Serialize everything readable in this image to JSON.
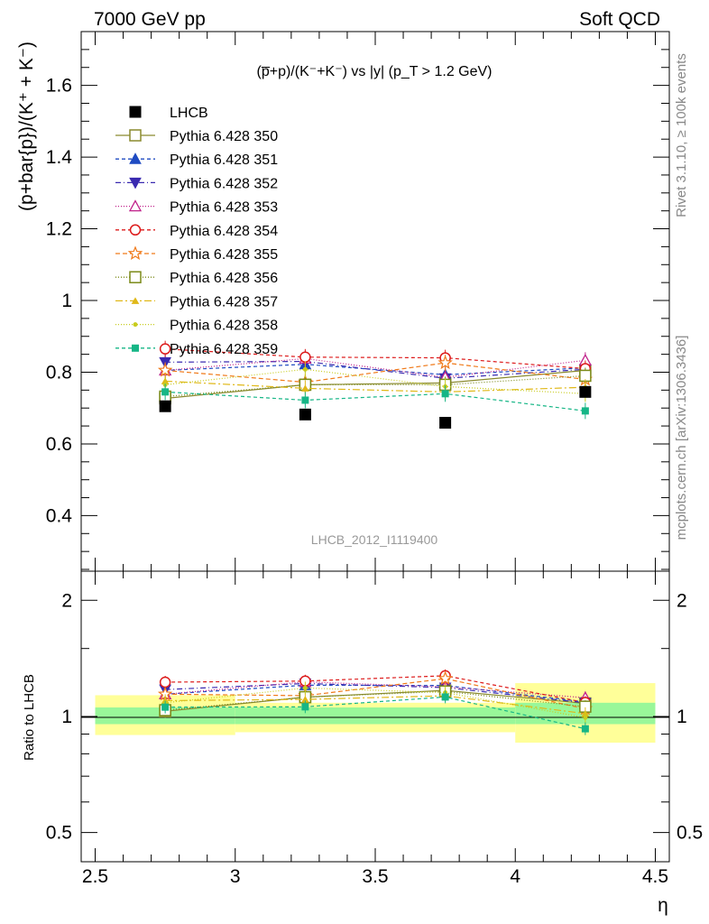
{
  "header": {
    "left": "7000 GeV pp",
    "right": "Soft QCD"
  },
  "side_labels": {
    "rivet": "Rivet 3.1.10, ≥ 100k events",
    "mcplots": "mcplots.cern.ch [arXiv:1306.3436]"
  },
  "analysis_id": "LHCB_2012_I1119400",
  "chart_data": [
    {
      "type": "scatter",
      "title": "(p̅+p)/(K⁻+K⁻) vs |y| (p_T > 1.2 GeV)",
      "ylabel": "(p+bar{p})/(K⁺ + K⁻)",
      "xlabel": "η",
      "xlim": [
        2.45,
        4.55
      ],
      "ylim": [
        0.245,
        1.75
      ],
      "x_ticks": [
        "2.5",
        "3",
        "3.5",
        "4",
        "4.5"
      ],
      "y_ticks": [
        "0.4",
        "0.6",
        "0.8",
        "1",
        "1.2",
        "1.4",
        "1.6"
      ],
      "x": [
        2.75,
        3.25,
        3.75,
        4.25
      ],
      "data": {
        "name": "LHCB",
        "x": [
          2.75,
          3.25,
          3.75,
          4.25
        ],
        "y": [
          0.705,
          0.682,
          0.659,
          0.745
        ],
        "band_edges": [
          2.5,
          3.0,
          4.0,
          4.5
        ]
      },
      "series": [
        {
          "name": "Pythia 6.428 350",
          "color": "#8a8a2e",
          "dash": "",
          "marker": "square-open",
          "values": [
            0.727,
            0.765,
            0.77,
            0.805
          ]
        },
        {
          "name": "Pythia 6.428 351",
          "color": "#1f4bc2",
          "dash": "4,3",
          "marker": "triangle-up",
          "values": [
            0.805,
            0.822,
            0.793,
            0.812
          ]
        },
        {
          "name": "Pythia 6.428 352",
          "color": "#3a2ab0",
          "dash": "6,3,1,3",
          "marker": "triangle-down",
          "values": [
            0.828,
            0.83,
            0.783,
            0.808
          ]
        },
        {
          "name": "Pythia 6.428 353",
          "color": "#c0208a",
          "dash": "1,2",
          "marker": "triangle-open",
          "values": [
            0.805,
            0.838,
            0.786,
            0.833
          ]
        },
        {
          "name": "Pythia 6.428 354",
          "color": "#dd1c1c",
          "dash": "4,3",
          "marker": "circle-open",
          "values": [
            0.865,
            0.842,
            0.84,
            0.81
          ]
        },
        {
          "name": "Pythia 6.428 355",
          "color": "#f07a1a",
          "dash": "5,3",
          "marker": "star-open",
          "values": [
            0.805,
            0.772,
            0.826,
            0.78
          ]
        },
        {
          "name": "Pythia 6.428 356",
          "color": "#7b8a18",
          "dash": "1,2",
          "marker": "square-open",
          "values": [
            0.732,
            0.765,
            0.765,
            0.79
          ]
        },
        {
          "name": "Pythia 6.428 357",
          "color": "#e0b818",
          "dash": "8,3,2,3",
          "marker": "tri-small",
          "values": [
            0.775,
            0.755,
            0.745,
            0.758
          ]
        },
        {
          "name": "Pythia 6.428 358",
          "color": "#c8cc1e",
          "dash": "1,2",
          "marker": "dot",
          "values": [
            0.765,
            0.808,
            0.76,
            0.74
          ]
        },
        {
          "name": "Pythia 6.428 359",
          "color": "#16b686",
          "dash": "4,3",
          "marker": "square-small",
          "values": [
            0.745,
            0.722,
            0.74,
            0.692
          ]
        }
      ]
    },
    {
      "type": "scatter",
      "ylabel": "Ratio to LHCB",
      "xlabel": "η",
      "y_scale": "log",
      "ylim": [
        0.42,
        2.38
      ],
      "y_ticks": [
        "0.5",
        "1",
        "2"
      ],
      "reference": 1,
      "bands": {
        "inner": {
          "color": "#99f799",
          "lower": [
            0.955,
            0.955,
            0.955
          ],
          "upper": [
            1.055,
            1.055,
            1.085
          ]
        },
        "outer": {
          "color": "#ffff99",
          "lower": [
            0.895,
            0.91,
            0.855
          ],
          "upper": [
            1.135,
            1.085,
            1.22
          ]
        }
      },
      "ratio_series_values": {
        "Pythia 6.428 350": [
          1.031,
          1.122,
          1.168,
          1.081
        ],
        "Pythia 6.428 351": [
          1.142,
          1.205,
          1.203,
          1.09
        ],
        "Pythia 6.428 352": [
          1.174,
          1.217,
          1.188,
          1.085
        ],
        "Pythia 6.428 353": [
          1.142,
          1.229,
          1.193,
          1.118
        ],
        "Pythia 6.428 354": [
          1.227,
          1.235,
          1.275,
          1.087
        ],
        "Pythia 6.428 355": [
          1.142,
          1.132,
          1.253,
          1.047
        ],
        "Pythia 6.428 356": [
          1.038,
          1.122,
          1.161,
          1.06
        ],
        "Pythia 6.428 357": [
          1.099,
          1.107,
          1.131,
          1.017
        ],
        "Pythia 6.428 358": [
          1.085,
          1.185,
          1.153,
          0.993
        ],
        "Pythia 6.428 359": [
          1.057,
          1.059,
          1.123,
          0.929
        ]
      }
    }
  ]
}
